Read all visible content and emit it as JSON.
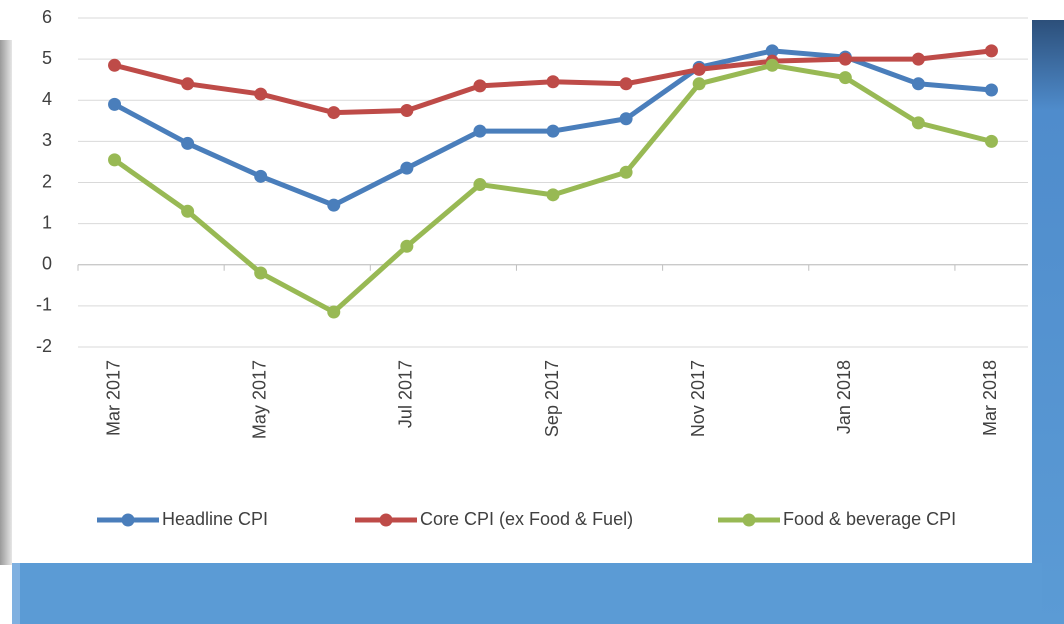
{
  "chart_data": {
    "type": "line",
    "categories": [
      "Mar 2017",
      null,
      "May 2017",
      null,
      "Jul 2017",
      null,
      "Sep 2017",
      null,
      "Nov 2017",
      null,
      "Jan 2018",
      null,
      "Mar 2018"
    ],
    "series": [
      {
        "name": "Headline CPI",
        "color": "#4a7ebb",
        "values": [
          3.9,
          2.95,
          2.15,
          1.45,
          2.35,
          3.25,
          3.25,
          3.55,
          4.8,
          5.2,
          5.05,
          4.4,
          4.25
        ]
      },
      {
        "name": "Core CPI (ex Food & Fuel)",
        "color": "#be4b48",
        "values": [
          4.85,
          4.4,
          4.15,
          3.7,
          3.75,
          4.35,
          4.45,
          4.4,
          4.75,
          4.95,
          5.0,
          5.0,
          5.2
        ]
      },
      {
        "name": "Food & beverage CPI",
        "color": "#98b954",
        "values": [
          2.55,
          1.3,
          -0.2,
          -1.15,
          0.45,
          1.95,
          1.7,
          2.25,
          4.4,
          4.85,
          4.55,
          3.45,
          3.0
        ]
      }
    ],
    "ylim": [
      -2,
      6
    ],
    "yticks": [
      -2,
      -1,
      0,
      1,
      2,
      3,
      4,
      5,
      6
    ],
    "grid": true,
    "legend": "bottom"
  }
}
